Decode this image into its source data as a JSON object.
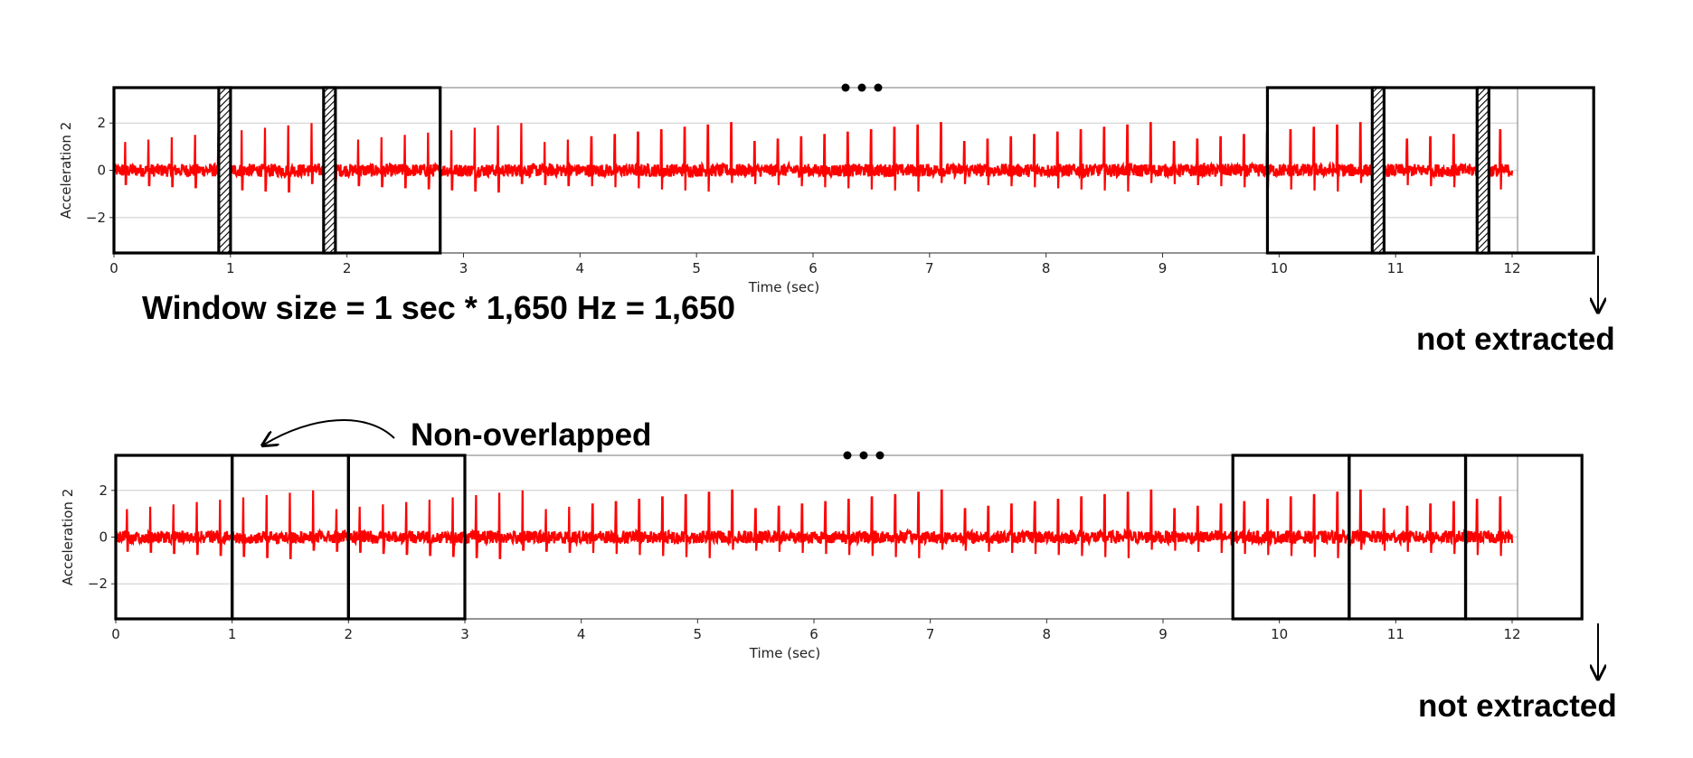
{
  "panels": [
    {
      "id": "top",
      "ylabel": "Acceleration 2",
      "xlabel": "Time (sec)",
      "xticks": [
        "0",
        "1",
        "2",
        "3",
        "4",
        "5",
        "6",
        "7",
        "8",
        "9",
        "10",
        "11",
        "12"
      ],
      "yticks": [
        "2",
        "0",
        "−2"
      ],
      "ellipsis": "•••",
      "overlap_hatched": true
    },
    {
      "id": "bottom",
      "ylabel": "Acceleration 2",
      "xlabel": "Time (sec)",
      "xticks": [
        "0",
        "1",
        "2",
        "3",
        "4",
        "5",
        "6",
        "7",
        "8",
        "9",
        "10",
        "11",
        "12"
      ],
      "yticks": [
        "2",
        "0",
        "−2"
      ],
      "ellipsis": "•••",
      "overlap_hatched": false
    }
  ],
  "annotations": {
    "window_size": "Window size = 1 sec * 1,650 Hz = 1,650",
    "not_extracted_top": "not extracted",
    "not_extracted_bottom": "not extracted",
    "non_overlapped": "Non-overlapped"
  },
  "chart_data": [
    {
      "type": "line",
      "title": "",
      "xlabel": "Time (sec)",
      "ylabel": "Acceleration 2",
      "xlim": [
        0,
        12
      ],
      "ylim": [
        -3.5,
        3.5
      ],
      "grid": "horizontal",
      "series": [
        {
          "color": "#ff0000",
          "description_values": "periodic spikes, amplitude about 1.2 to 2.0, roughly 5 per second"
        }
      ],
      "windows_seconds": [
        [
          0,
          1
        ],
        [
          0.9,
          1.9
        ],
        [
          1.8,
          2.8
        ],
        [
          9.9,
          10.9
        ],
        [
          10.8,
          11.8
        ],
        [
          11.7,
          12.7
        ]
      ]
    },
    {
      "type": "line",
      "title": "",
      "xlabel": "Time (sec)",
      "ylabel": "Acceleration 2",
      "xlim": [
        0,
        12
      ],
      "ylim": [
        -3.5,
        3.5
      ],
      "grid": "horizontal",
      "series": [
        {
          "color": "#ff0000"
        }
      ],
      "windows_seconds": [
        [
          0,
          1
        ],
        [
          1,
          2
        ],
        [
          2,
          3
        ],
        [
          9.6,
          10.6
        ],
        [
          10.6,
          11.6
        ],
        [
          11.6,
          12.6
        ]
      ]
    }
  ],
  "colors": {
    "signal": "#ff0000",
    "frame": "#000000",
    "grid": "#d6d6d6"
  }
}
